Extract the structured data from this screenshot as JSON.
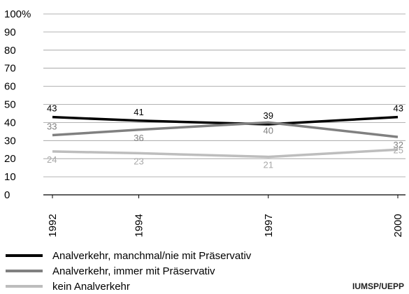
{
  "chart_data": {
    "type": "line",
    "x": [
      "1992",
      "1994",
      "1997",
      "2000"
    ],
    "y_ticks": [
      "100%",
      "90",
      "80",
      "70",
      "60",
      "50",
      "40",
      "30",
      "20",
      "10",
      "0"
    ],
    "ylim": [
      0,
      100
    ],
    "grid": true,
    "series": [
      {
        "name": "Analverkehr, manchmal/nie mit Präservativ",
        "values": [
          43,
          41,
          39,
          43
        ],
        "color": "#000000",
        "label_color": "#000000"
      },
      {
        "name": "Analverkehr, immer mit Präservativ",
        "values": [
          33,
          36,
          40,
          32
        ],
        "color": "#808080",
        "label_color": "#808080"
      },
      {
        "name": "kein Analverkehr",
        "values": [
          24,
          23,
          21,
          25
        ],
        "color": "#bdbdbd",
        "label_color": "#a8a8a8"
      }
    ]
  },
  "source": "IUMSP/UEPP"
}
